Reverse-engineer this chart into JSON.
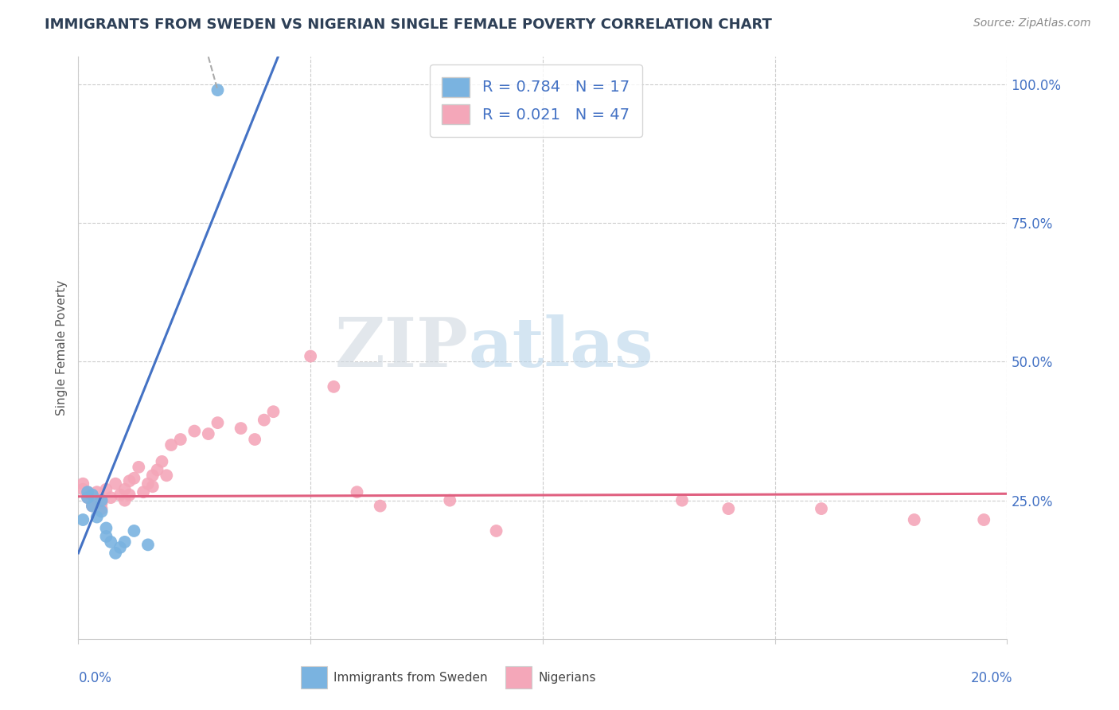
{
  "title": "IMMIGRANTS FROM SWEDEN VS NIGERIAN SINGLE FEMALE POVERTY CORRELATION CHART",
  "source": "Source: ZipAtlas.com",
  "ylabel": "Single Female Poverty",
  "legend_label1": "Immigrants from Sweden",
  "legend_label2": "Nigerians",
  "r1": 0.784,
  "n1": 17,
  "r2": 0.021,
  "n2": 47,
  "color_blue": "#7ab3e0",
  "color_pink": "#f4a7b9",
  "color_blue_line": "#4472c4",
  "color_pink_line": "#e06080",
  "watermark_zip": "ZIP",
  "watermark_atlas": "atlas",
  "title_color": "#2e4057",
  "axis_color": "#4472c4",
  "xmin": 0.0,
  "xmax": 0.2,
  "ymin": 0.0,
  "ymax": 1.05,
  "blue_trend_x0": 0.0,
  "blue_trend_y0": 0.155,
  "blue_trend_x1": 0.043,
  "blue_trend_y1": 1.05,
  "pink_trend_x0": 0.0,
  "pink_trend_y0": 0.257,
  "pink_trend_x1": 0.2,
  "pink_trend_y1": 0.262,
  "sweden_x": [
    0.001,
    0.002,
    0.002,
    0.003,
    0.003,
    0.004,
    0.005,
    0.005,
    0.006,
    0.006,
    0.007,
    0.008,
    0.009,
    0.01,
    0.012,
    0.015,
    0.03
  ],
  "sweden_y": [
    0.215,
    0.255,
    0.265,
    0.24,
    0.26,
    0.22,
    0.23,
    0.25,
    0.185,
    0.2,
    0.175,
    0.155,
    0.165,
    0.175,
    0.195,
    0.17,
    0.99
  ],
  "nigeria_x": [
    0.001,
    0.001,
    0.002,
    0.002,
    0.003,
    0.003,
    0.004,
    0.004,
    0.005,
    0.005,
    0.006,
    0.007,
    0.008,
    0.009,
    0.01,
    0.01,
    0.011,
    0.011,
    0.012,
    0.013,
    0.014,
    0.015,
    0.016,
    0.016,
    0.017,
    0.018,
    0.019,
    0.02,
    0.022,
    0.025,
    0.028,
    0.03,
    0.035,
    0.038,
    0.04,
    0.042,
    0.05,
    0.055,
    0.06,
    0.065,
    0.08,
    0.09,
    0.13,
    0.14,
    0.16,
    0.18,
    0.195
  ],
  "nigeria_y": [
    0.27,
    0.28,
    0.255,
    0.265,
    0.24,
    0.26,
    0.25,
    0.265,
    0.235,
    0.245,
    0.27,
    0.255,
    0.28,
    0.26,
    0.25,
    0.27,
    0.26,
    0.285,
    0.29,
    0.31,
    0.265,
    0.28,
    0.295,
    0.275,
    0.305,
    0.32,
    0.295,
    0.35,
    0.36,
    0.375,
    0.37,
    0.39,
    0.38,
    0.36,
    0.395,
    0.41,
    0.51,
    0.455,
    0.265,
    0.24,
    0.25,
    0.195,
    0.25,
    0.235,
    0.235,
    0.215,
    0.215
  ]
}
